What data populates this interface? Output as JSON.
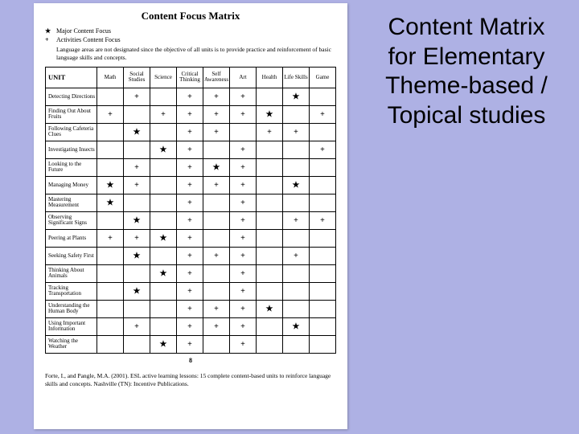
{
  "colors": {
    "page_bg": "#aeb1e4",
    "paper_bg": "#ffffff",
    "text": "#000000",
    "border": "#000000"
  },
  "right_title": "Content Matrix for Elementary Theme-based / Topical studies",
  "page": {
    "title": "Content Focus Matrix",
    "legend": {
      "sym1": "★",
      "text1": "Major Content Focus",
      "sym2": "+",
      "text2": "Activities Content Focus",
      "note": "Language areas are not designated since the objective of all units is to provide practice and reinforcement of basic language skills and concepts."
    },
    "unit_header": "UNIT",
    "columns": [
      "Math",
      "Social Studies",
      "Science",
      "Critical Thinking",
      "Self Awareness",
      "Art",
      "Health",
      "Life Skills",
      "Game"
    ],
    "rows": [
      {
        "unit": "Detecting Directions",
        "cells": [
          "",
          "+",
          "",
          "+",
          "+",
          "+",
          "",
          "*",
          ""
        ]
      },
      {
        "unit": "Finding Out About Fruits",
        "cells": [
          "+",
          "",
          "+",
          "+",
          "+",
          "+",
          "*",
          "",
          "+"
        ]
      },
      {
        "unit": "Following Cafeteria Clues",
        "cells": [
          "",
          "*",
          "",
          "+",
          "+",
          "",
          "+",
          "+",
          ""
        ]
      },
      {
        "unit": "Investigating Insects",
        "cells": [
          "",
          "",
          "*",
          "+",
          "",
          "+",
          "",
          "",
          "+"
        ]
      },
      {
        "unit": "Looking to the Future",
        "cells": [
          "",
          "+",
          "",
          "+",
          "*",
          "+",
          "",
          "",
          ""
        ]
      },
      {
        "unit": "Managing Money",
        "cells": [
          "*",
          "+",
          "",
          "+",
          "+",
          "+",
          "",
          "*",
          ""
        ]
      },
      {
        "unit": "Mastering Measurement",
        "cells": [
          "*",
          "",
          "",
          "+",
          "",
          "+",
          "",
          "",
          ""
        ]
      },
      {
        "unit": "Observing Significant Signs",
        "cells": [
          "",
          "*",
          "",
          "+",
          "",
          "+",
          "",
          "+",
          "+"
        ]
      },
      {
        "unit": "Peering at Plants",
        "cells": [
          "+",
          "+",
          "*",
          "+",
          "",
          "+",
          "",
          "",
          ""
        ]
      },
      {
        "unit": "Seeking Safety First",
        "cells": [
          "",
          "*",
          "",
          "+",
          "+",
          "+",
          "",
          "+",
          ""
        ]
      },
      {
        "unit": "Thinking About Animals",
        "cells": [
          "",
          "",
          "*",
          "+",
          "",
          "+",
          "",
          "",
          ""
        ]
      },
      {
        "unit": "Tracking Transportation",
        "cells": [
          "",
          "*",
          "",
          "+",
          "",
          "+",
          "",
          "",
          ""
        ]
      },
      {
        "unit": "Understanding the Human Body",
        "cells": [
          "",
          "",
          "",
          "+",
          "+",
          "+",
          "*",
          "",
          ""
        ]
      },
      {
        "unit": "Using Important Information",
        "cells": [
          "",
          "+",
          "",
          "+",
          "+",
          "+",
          "",
          "*",
          ""
        ]
      },
      {
        "unit": "Watching the Weather",
        "cells": [
          "",
          "",
          "*",
          "+",
          "",
          "+",
          "",
          "",
          ""
        ]
      }
    ],
    "page_number": "8",
    "citation": "Forte, I., and Pangle, M.A. (2001). ESL active learning lessons: 15 complete content-based units to reinforce language skills and concepts. Nashville (TN): Incentive Publications."
  }
}
